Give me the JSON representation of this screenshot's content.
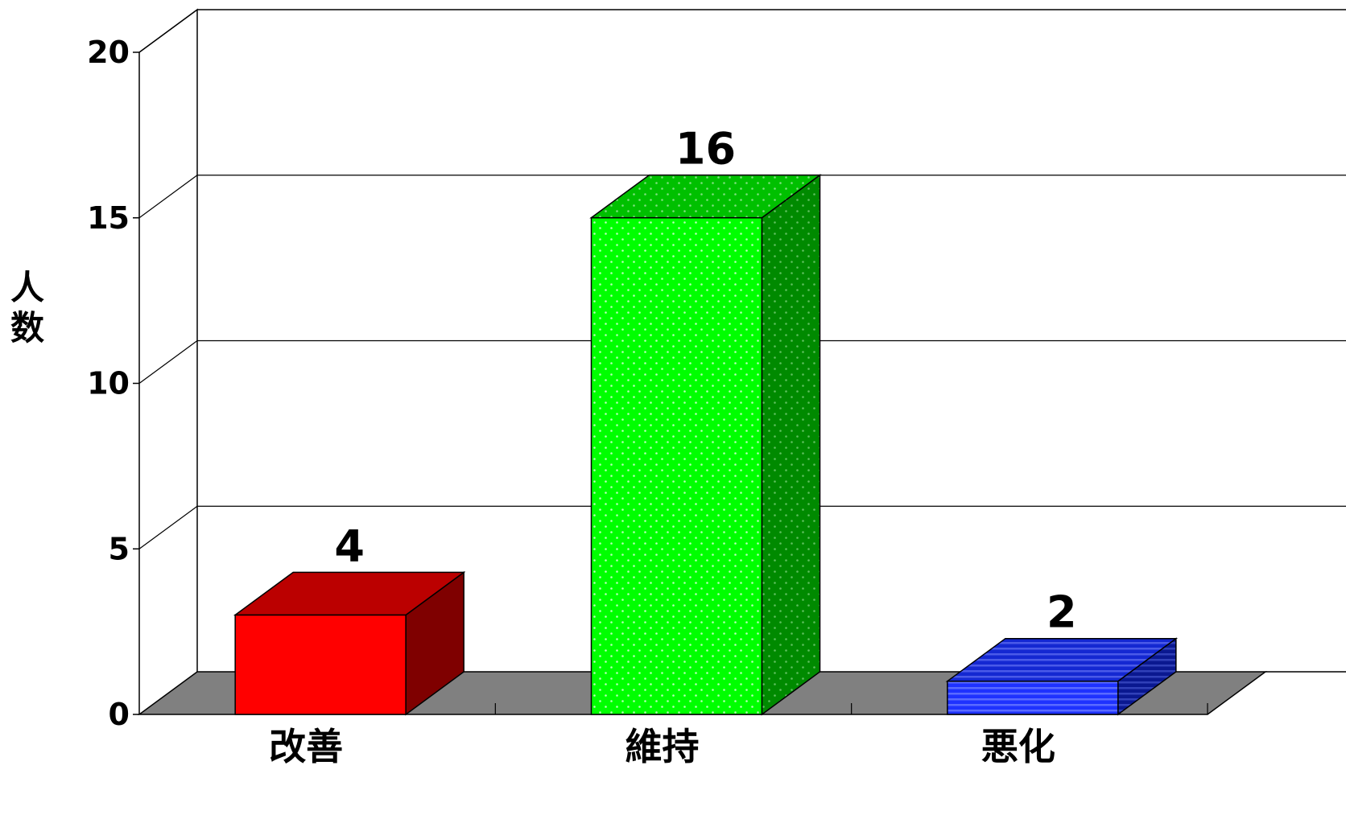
{
  "chart_data": {
    "type": "bar",
    "style": "3d",
    "categories": [
      "改善",
      "維持",
      "悪化"
    ],
    "values": [
      4,
      16,
      2
    ],
    "data_labels": [
      "4",
      "16",
      "2"
    ],
    "ylabel": "人数",
    "ylim": [
      0,
      20
    ],
    "yticks": [
      0,
      5,
      10,
      15,
      20
    ],
    "grid": true,
    "legend": "none",
    "colors": {
      "front": [
        "#ff0000",
        "#00ff00",
        "#1e32ff"
      ],
      "top": [
        "#bb0000",
        "#00c000",
        "#1428d2"
      ],
      "side": [
        "#7f0000",
        "#008a00",
        "#0a1890"
      ],
      "floor": "#808080"
    },
    "fills": [
      "solid",
      "dotted",
      "striped"
    ]
  }
}
